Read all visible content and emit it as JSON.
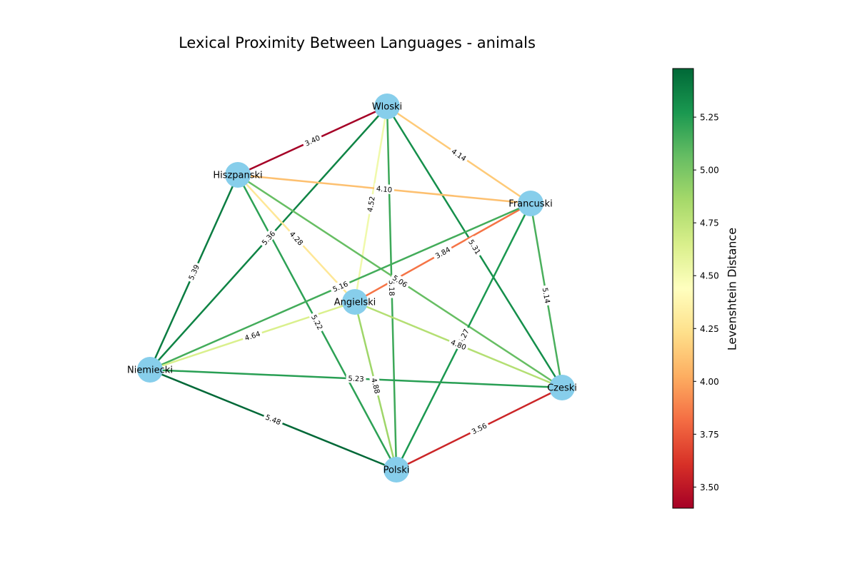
{
  "title": "Lexical Proximity Between Languages - animals",
  "colorbar": {
    "label": "Levenshtein Distance",
    "min": 3.4,
    "max": 5.48,
    "ticks": [
      "3.50",
      "3.75",
      "4.00",
      "4.25",
      "4.50",
      "4.75",
      "5.00",
      "5.25"
    ],
    "colormap": [
      "#a50026",
      "#d73027",
      "#f46d43",
      "#fdae61",
      "#fee08b",
      "#ffffbf",
      "#d9ef8b",
      "#a6d96a",
      "#66bd63",
      "#1a9850",
      "#006837"
    ]
  },
  "node_color": "#87ceeb",
  "chart_data": {
    "type": "network",
    "nodes": [
      "Wloski",
      "Hiszpanski",
      "Francuski",
      "Angielski",
      "Niemiecki",
      "Czeski",
      "Polski"
    ],
    "edges": [
      {
        "source": "Wloski",
        "target": "Hiszpanski",
        "value": 3.4,
        "label": "3.40"
      },
      {
        "source": "Wloski",
        "target": "Francuski",
        "value": 4.14,
        "label": "4.14"
      },
      {
        "source": "Wloski",
        "target": "Angielski",
        "value": 4.52,
        "label": "4.52"
      },
      {
        "source": "Wloski",
        "target": "Niemiecki",
        "value": 5.36,
        "label": "5.36"
      },
      {
        "source": "Wloski",
        "target": "Czeski",
        "value": 5.31,
        "label": "5.31"
      },
      {
        "source": "Wloski",
        "target": "Polski",
        "value": 5.18,
        "label": "5.18"
      },
      {
        "source": "Hiszpanski",
        "target": "Francuski",
        "value": 4.1,
        "label": "4.10"
      },
      {
        "source": "Hiszpanski",
        "target": "Angielski",
        "value": 4.28,
        "label": "4.28"
      },
      {
        "source": "Hiszpanski",
        "target": "Niemiecki",
        "value": 5.39,
        "label": "5.39"
      },
      {
        "source": "Hiszpanski",
        "target": "Czeski",
        "value": 5.06,
        "label": "5.06"
      },
      {
        "source": "Hiszpanski",
        "target": "Polski",
        "value": 5.22,
        "label": "5.22"
      },
      {
        "source": "Francuski",
        "target": "Angielski",
        "value": 3.84,
        "label": "3.84"
      },
      {
        "source": "Francuski",
        "target": "Niemiecki",
        "value": 5.16,
        "label": "5.16"
      },
      {
        "source": "Francuski",
        "target": "Czeski",
        "value": 5.14,
        "label": "5.14"
      },
      {
        "source": "Francuski",
        "target": "Polski",
        "value": 5.27,
        "label": "5.27"
      },
      {
        "source": "Angielski",
        "target": "Niemiecki",
        "value": 4.64,
        "label": "4.64"
      },
      {
        "source": "Angielski",
        "target": "Czeski",
        "value": 4.8,
        "label": "4.80"
      },
      {
        "source": "Angielski",
        "target": "Polski",
        "value": 4.88,
        "label": "4.88"
      },
      {
        "source": "Niemiecki",
        "target": "Czeski",
        "value": 5.23,
        "label": "5.23"
      },
      {
        "source": "Niemiecki",
        "target": "Polski",
        "value": 5.48,
        "label": "5.48"
      },
      {
        "source": "Czeski",
        "target": "Polski",
        "value": 3.56,
        "label": "3.56"
      }
    ]
  }
}
